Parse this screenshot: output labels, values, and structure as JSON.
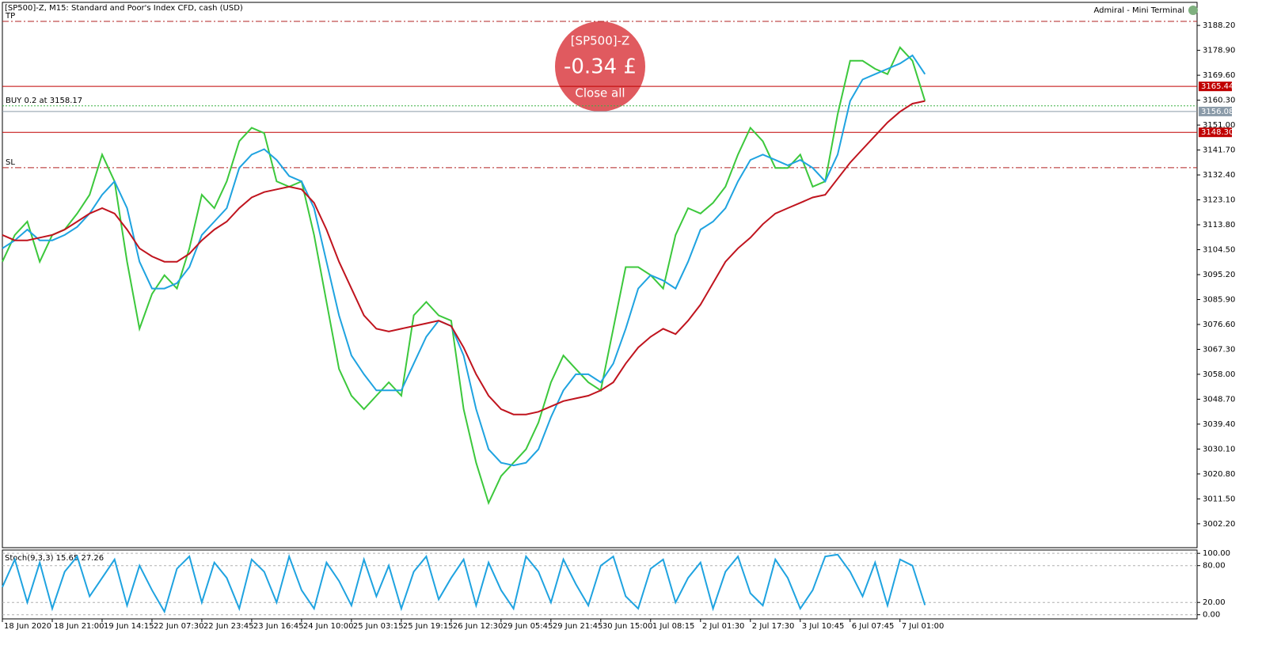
{
  "terminal": {
    "symbol_info": "[SP500]-Z, M15:  Standard and Poor's Index CFD, cash (USD)",
    "title": "Admiral - Mini Terminal",
    "bubble": {
      "symbol": "[SP500]-Z",
      "profit": "-0.34 £",
      "action": "Close all"
    }
  },
  "chart_data": [
    {
      "type": "line",
      "categories": [
        "18 Jun 2020",
        null,
        null,
        null,
        "18 Jun 21:00",
        null,
        null,
        null,
        "19 Jun 14:15",
        null,
        null,
        null,
        "22 Jun 07:30",
        null,
        null,
        null,
        "22 Jun 23:45",
        null,
        null,
        null,
        "23 Jun 16:45",
        null,
        null,
        null,
        "24 Jun 10:00",
        null,
        null,
        null,
        "25 Jun 03:15",
        null,
        null,
        null,
        "25 Jun 19:15",
        null,
        null,
        null,
        "26 Jun 12:30",
        null,
        null,
        null,
        "29 Jun 05:45",
        null,
        null,
        null,
        "29 Jun 21:45",
        null,
        null,
        null,
        "30 Jun 15:00",
        null,
        null,
        null,
        "1 Jul 08:15",
        null,
        null,
        null,
        "2 Jul 01:30",
        null,
        null,
        null,
        "2 Jul 17:30",
        null,
        null,
        null,
        "3 Jul 10:45",
        null,
        null,
        null,
        "6 Jul 07:45",
        null,
        null,
        null,
        "7 Jul 01:00",
        null,
        null
      ],
      "series": [
        {
          "color": "#3cc83c",
          "values": [
            3100,
            3110,
            3115,
            3100,
            3110,
            3112,
            3118,
            3125,
            3140,
            3130,
            3100,
            3075,
            3088,
            3095,
            3090,
            3105,
            3125,
            3120,
            3130,
            3145,
            3150,
            3148,
            3130,
            3128,
            3130,
            3110,
            3085,
            3060,
            3050,
            3045,
            3050,
            3055,
            3050,
            3080,
            3085,
            3080,
            3078,
            3045,
            3025,
            3010,
            3020,
            3025,
            3030,
            3040,
            3055,
            3065,
            3060,
            3055,
            3052,
            3075,
            3098,
            3098,
            3095,
            3090,
            3110,
            3120,
            3118,
            3122,
            3128,
            3140,
            3150,
            3145,
            3135,
            3135,
            3140,
            3128,
            3130,
            3155,
            3175,
            3175,
            3172,
            3170,
            3180,
            3175,
            3160
          ]
        },
        {
          "color": "#1fa3e0",
          "values": [
            3105,
            3108,
            3112,
            3108,
            3108,
            3110,
            3113,
            3118,
            3125,
            3130,
            3120,
            3100,
            3090,
            3090,
            3092,
            3098,
            3110,
            3115,
            3120,
            3135,
            3140,
            3142,
            3138,
            3132,
            3130,
            3120,
            3100,
            3080,
            3065,
            3058,
            3052,
            3052,
            3052,
            3062,
            3072,
            3078,
            3076,
            3065,
            3045,
            3030,
            3025,
            3024,
            3025,
            3030,
            3042,
            3052,
            3058,
            3058,
            3055,
            3062,
            3075,
            3090,
            3095,
            3093,
            3090,
            3100,
            3112,
            3115,
            3120,
            3130,
            3138,
            3140,
            3138,
            3136,
            3138,
            3135,
            3130,
            3140,
            3160,
            3168,
            3170,
            3172,
            3174,
            3177,
            3170
          ]
        },
        {
          "color": "#c0141e",
          "values": [
            3110,
            3108,
            3108,
            3109,
            3110,
            3112,
            3115,
            3118,
            3120,
            3118,
            3112,
            3105,
            3102,
            3100,
            3100,
            3103,
            3108,
            3112,
            3115,
            3120,
            3124,
            3126,
            3127,
            3128,
            3127,
            3122,
            3112,
            3100,
            3090,
            3080,
            3075,
            3074,
            3075,
            3076,
            3077,
            3078,
            3076,
            3068,
            3058,
            3050,
            3045,
            3043,
            3043,
            3044,
            3046,
            3048,
            3049,
            3050,
            3052,
            3055,
            3062,
            3068,
            3072,
            3075,
            3073,
            3078,
            3084,
            3092,
            3100,
            3105,
            3109,
            3114,
            3118,
            3120,
            3122,
            3124,
            3125,
            3131,
            3137,
            3142,
            3147,
            3152,
            3156,
            3159,
            3160
          ]
        }
      ],
      "ylim": [
        2993.3,
        3196.8
      ],
      "yticks": [
        {
          "value": 3188.2,
          "label": "3188.20"
        },
        {
          "value": 3178.9,
          "label": "3178.90"
        },
        {
          "value": 3169.6,
          "label": "3169.60"
        },
        {
          "value": 3160.3,
          "label": "3160.30"
        },
        {
          "value": 3151,
          "label": "3151.00"
        },
        {
          "value": 3141.7,
          "label": "3141.70"
        },
        {
          "value": 3132.4,
          "label": "3132.40"
        },
        {
          "value": 3123.1,
          "label": "3123.10"
        },
        {
          "value": 3113.8,
          "label": "3113.80"
        },
        {
          "value": 3104.5,
          "label": "3104.50"
        },
        {
          "value": 3095.2,
          "label": "3095.20"
        },
        {
          "value": 3085.9,
          "label": "3085.90"
        },
        {
          "value": 3076.6,
          "label": "3076.60"
        },
        {
          "value": 3067.3,
          "label": "3067.30"
        },
        {
          "value": 3058,
          "label": "3058.00"
        },
        {
          "value": 3048.7,
          "label": "3048.70"
        },
        {
          "value": 3039.4,
          "label": "3039.40"
        },
        {
          "value": 3030.1,
          "label": "3030.10"
        },
        {
          "value": 3020.8,
          "label": "3020.80"
        },
        {
          "value": 3011.5,
          "label": "3011.50"
        },
        {
          "value": 3002.2,
          "label": "3002.20"
        }
      ],
      "grid": false,
      "levels": [
        {
          "value": 3189.7,
          "text": "TP",
          "color": "#b22222",
          "style": "dash-dot"
        },
        {
          "value": 3165.44,
          "color": "#c00000",
          "style": "solid",
          "box": true
        },
        {
          "value": 3158.17,
          "text": "BUY 0.2 at 3158.17",
          "color": "#3cb043",
          "style": "dotted"
        },
        {
          "value": 3156.08,
          "color": "#8a9aa8",
          "style": "solid",
          "box": true
        },
        {
          "value": 3148.3,
          "label": "3148.30",
          "color": "#c00000",
          "style": "solid",
          "box": true
        },
        {
          "value": 3135.1,
          "text": "SL",
          "color": "#b22222",
          "style": "dash-dot"
        }
      ]
    },
    {
      "type": "line",
      "title": "Stoch(9,3,3) 15.65 27.26",
      "series": [
        {
          "color": "#1fa3e0",
          "values": [
            45,
            90,
            20,
            85,
            10,
            70,
            95,
            30,
            60,
            90,
            15,
            80,
            40,
            5,
            75,
            95,
            20,
            85,
            60,
            10,
            90,
            70,
            20,
            95,
            40,
            10,
            85,
            55,
            15,
            90,
            30,
            80,
            10,
            70,
            95,
            25,
            60,
            90,
            15,
            85,
            40,
            10,
            95,
            70,
            20,
            90,
            50,
            15,
            80,
            95,
            30,
            10,
            75,
            90,
            20,
            60,
            85,
            10,
            70,
            95,
            35,
            15,
            90,
            60,
            10,
            40,
            95,
            98,
            70,
            30,
            85,
            15,
            90,
            80,
            15.65
          ]
        }
      ],
      "ylim": [
        -6.8,
        105.4
      ],
      "yticks": [
        {
          "value": 100,
          "label": "100.00"
        },
        {
          "value": 80,
          "label": "80.00"
        },
        {
          "value": 20,
          "label": "20.00"
        },
        {
          "value": 0,
          "label": "0.00"
        }
      ],
      "grid": true
    }
  ]
}
